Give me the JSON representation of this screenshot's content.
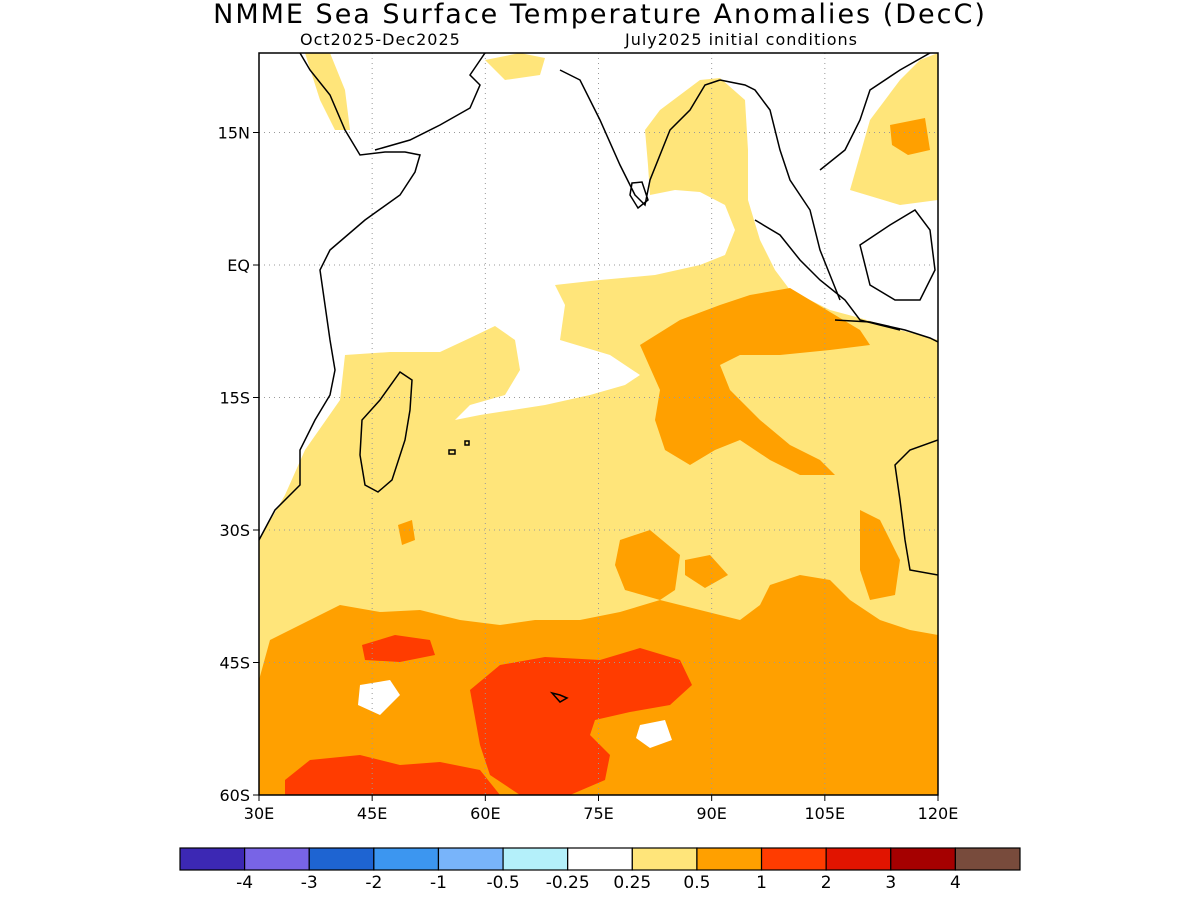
{
  "title": "NMME Sea Surface Temperature Anomalies (DecC)",
  "subtitle_left": "Oct2025-Dec2025",
  "subtitle_right": "July2025 initial conditions",
  "map": {
    "lon_range": [
      30,
      120
    ],
    "lat_range": [
      -60,
      24
    ],
    "lat_ticks": [
      {
        "value": 15,
        "label": "15N"
      },
      {
        "value": 0,
        "label": "EQ"
      },
      {
        "value": -15,
        "label": "15S"
      },
      {
        "value": -30,
        "label": "30S"
      },
      {
        "value": -45,
        "label": "45S"
      },
      {
        "value": -60,
        "label": "60S"
      }
    ],
    "lon_ticks": [
      {
        "value": 30,
        "label": "30E"
      },
      {
        "value": 45,
        "label": "45E"
      },
      {
        "value": 60,
        "label": "60E"
      },
      {
        "value": 75,
        "label": "75E"
      },
      {
        "value": 90,
        "label": "90E"
      },
      {
        "value": 105,
        "label": "105E"
      },
      {
        "value": 120,
        "label": "120E"
      }
    ],
    "colors": {
      "c025": "#ffe57a",
      "c05": "#ffa000",
      "c1": "#ff3c00",
      "land_outline": "#000000",
      "grid": "#999999"
    }
  },
  "colorbar": {
    "colors": [
      "#3c28b4",
      "#7864e6",
      "#1e64d2",
      "#3c96f0",
      "#78b4fa",
      "#b4f0fa",
      "#ffffff",
      "#ffe57a",
      "#ffa000",
      "#ff3c00",
      "#e11400",
      "#a50000",
      "#784b3c"
    ],
    "labels": [
      "-4",
      "-3",
      "-2",
      "-1",
      "-0.5",
      "-0.25",
      "0.25",
      "0.5",
      "1",
      "2",
      "3",
      "4"
    ]
  }
}
